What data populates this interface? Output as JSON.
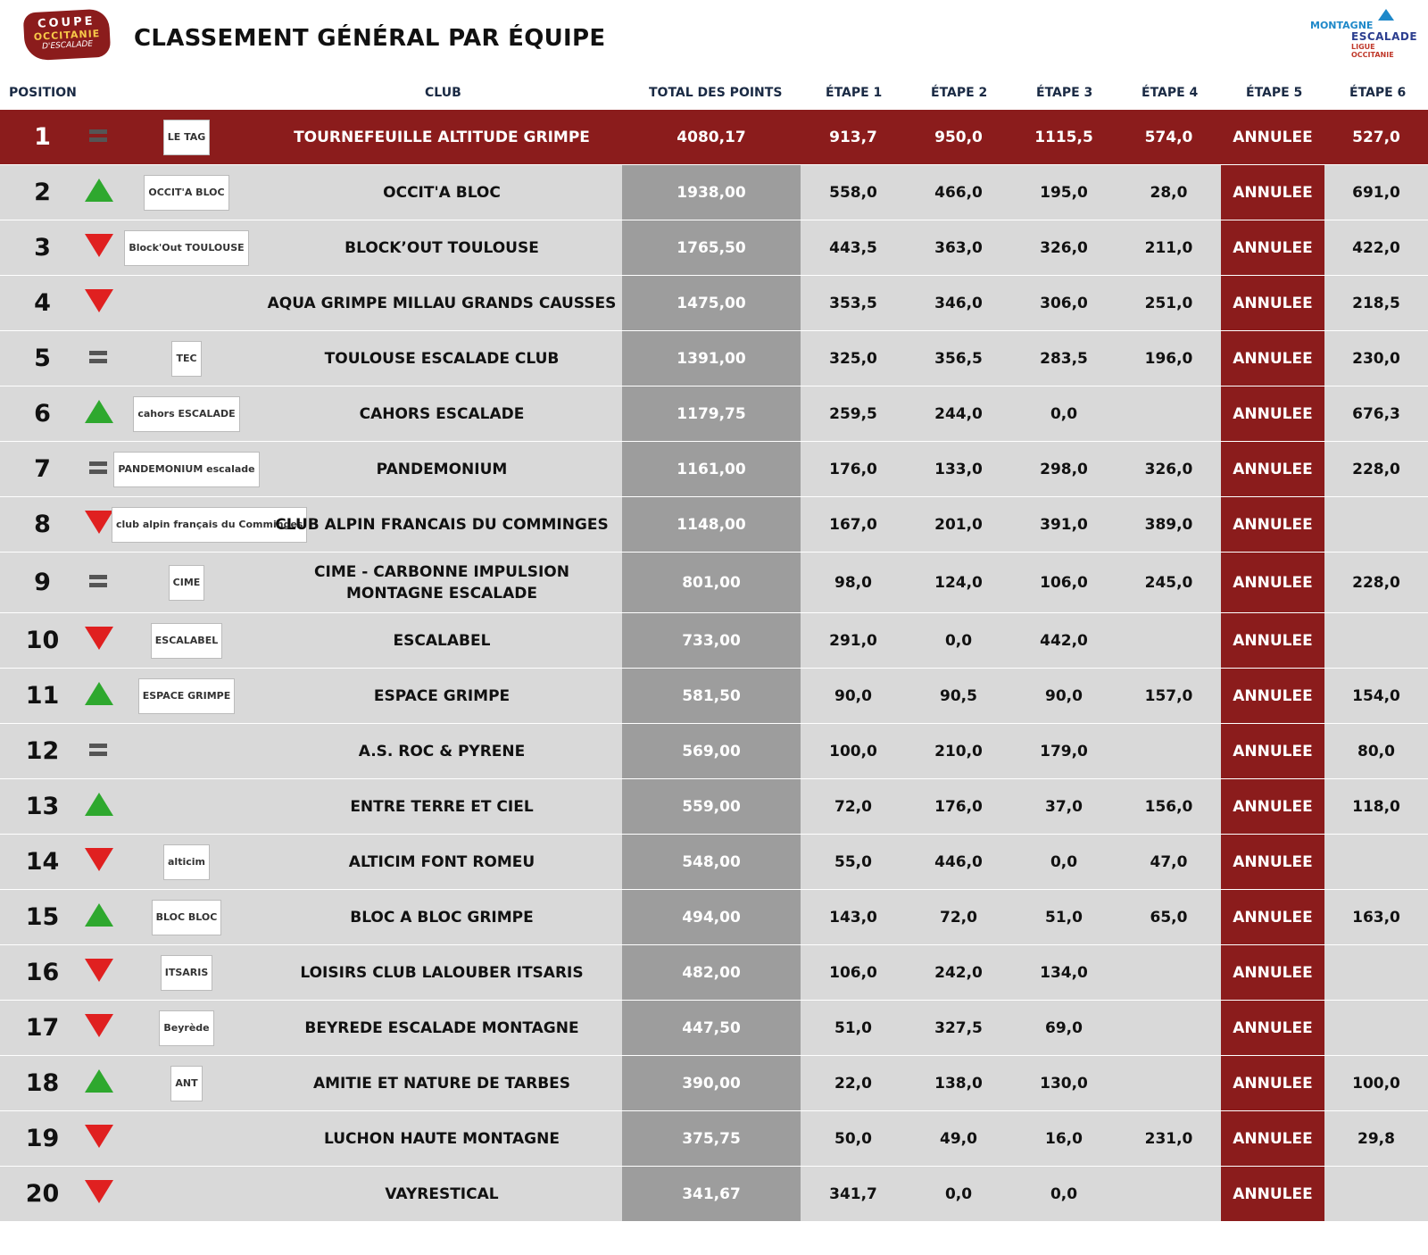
{
  "header": {
    "title": "CLASSEMENT GÉNÉRAL PAR ÉQUIPE",
    "logo_left": {
      "line1": "COUPE",
      "line2": "OCCITANIE",
      "line3": "D'ESCALADE"
    },
    "logo_right": {
      "line1": "MONTAGNE",
      "line2": "ESCALADE",
      "line3": "LIGUE",
      "line4": "OCCITANIE"
    }
  },
  "columns": {
    "position": "POSITION",
    "club": "CLUB",
    "total": "TOTAL DES POINTS",
    "etape1": "ÉTAPE 1",
    "etape2": "ÉTAPE 2",
    "etape3": "ÉTAPE 3",
    "etape4": "ÉTAPE 4",
    "etape5": "ÉTAPE 5",
    "etape6": "ÉTAPE 6"
  },
  "colors": {
    "leader_row": "#8b1c1c",
    "row_bg": "#d9d9d9",
    "total_bg": "#9d9d9d",
    "up": "#2ea82e",
    "down": "#e02020",
    "same": "#555555"
  },
  "rows": [
    {
      "pos": "1",
      "trend": "same",
      "club": "TOURNEFEUILLE ALTITUDE GRIMPE",
      "badge": "LE TAG",
      "total": "4080,17",
      "e1": "913,7",
      "e2": "950,0",
      "e3": "1115,5",
      "e4": "574,0",
      "e5": "ANNULEE",
      "e6": "527,0"
    },
    {
      "pos": "2",
      "trend": "up",
      "club": "OCCIT'A BLOC",
      "badge": "OCCIT'A BLOC",
      "total": "1938,00",
      "e1": "558,0",
      "e2": "466,0",
      "e3": "195,0",
      "e4": "28,0",
      "e5": "ANNULEE",
      "e6": "691,0"
    },
    {
      "pos": "3",
      "trend": "down",
      "club": "BLOCK’OUT TOULOUSE",
      "badge": "Block'Out TOULOUSE",
      "total": "1765,50",
      "e1": "443,5",
      "e2": "363,0",
      "e3": "326,0",
      "e4": "211,0",
      "e5": "ANNULEE",
      "e6": "422,0"
    },
    {
      "pos": "4",
      "trend": "down",
      "club": "AQUA GRIMPE MILLAU GRANDS CAUSSES",
      "badge": "",
      "total": "1475,00",
      "e1": "353,5",
      "e2": "346,0",
      "e3": "306,0",
      "e4": "251,0",
      "e5": "ANNULEE",
      "e6": "218,5"
    },
    {
      "pos": "5",
      "trend": "same",
      "club": "TOULOUSE ESCALADE CLUB",
      "badge": "TEC",
      "total": "1391,00",
      "e1": "325,0",
      "e2": "356,5",
      "e3": "283,5",
      "e4": "196,0",
      "e5": "ANNULEE",
      "e6": "230,0"
    },
    {
      "pos": "6",
      "trend": "up",
      "club": "CAHORS ESCALADE",
      "badge": "cahors ESCALADE",
      "total": "1179,75",
      "e1": "259,5",
      "e2": "244,0",
      "e3": "0,0",
      "e4": "",
      "e5": "ANNULEE",
      "e6": "676,3"
    },
    {
      "pos": "7",
      "trend": "same",
      "club": "PANDEMONIUM",
      "badge": "PANDEMONIUM escalade",
      "total": "1161,00",
      "e1": "176,0",
      "e2": "133,0",
      "e3": "298,0",
      "e4": "326,0",
      "e5": "ANNULEE",
      "e6": "228,0"
    },
    {
      "pos": "8",
      "trend": "down",
      "club": "CLUB ALPIN FRANCAIS DU COMMINGES",
      "badge": "club alpin français du Comminges",
      "total": "1148,00",
      "e1": "167,0",
      "e2": "201,0",
      "e3": "391,0",
      "e4": "389,0",
      "e5": "ANNULEE",
      "e6": ""
    },
    {
      "pos": "9",
      "trend": "same",
      "club": "CIME - CARBONNE IMPULSION MONTAGNE ESCALADE",
      "badge": "CIME",
      "total": "801,00",
      "e1": "98,0",
      "e2": "124,0",
      "e3": "106,0",
      "e4": "245,0",
      "e5": "ANNULEE",
      "e6": "228,0"
    },
    {
      "pos": "10",
      "trend": "down",
      "club": "ESCALABEL",
      "badge": "ESCALABEL",
      "total": "733,00",
      "e1": "291,0",
      "e2": "0,0",
      "e3": "442,0",
      "e4": "",
      "e5": "ANNULEE",
      "e6": ""
    },
    {
      "pos": "11",
      "trend": "up",
      "club": "ESPACE GRIMPE",
      "badge": "ESPACE GRIMPE",
      "total": "581,50",
      "e1": "90,0",
      "e2": "90,5",
      "e3": "90,0",
      "e4": "157,0",
      "e5": "ANNULEE",
      "e6": "154,0"
    },
    {
      "pos": "12",
      "trend": "same",
      "club": "A.S. ROC & PYRENE",
      "badge": "",
      "total": "569,00",
      "e1": "100,0",
      "e2": "210,0",
      "e3": "179,0",
      "e4": "",
      "e5": "ANNULEE",
      "e6": "80,0"
    },
    {
      "pos": "13",
      "trend": "up",
      "club": "ENTRE TERRE ET CIEL",
      "badge": "",
      "total": "559,00",
      "e1": "72,0",
      "e2": "176,0",
      "e3": "37,0",
      "e4": "156,0",
      "e5": "ANNULEE",
      "e6": "118,0"
    },
    {
      "pos": "14",
      "trend": "down",
      "club": "ALTICIM FONT ROMEU",
      "badge": "alticim",
      "total": "548,00",
      "e1": "55,0",
      "e2": "446,0",
      "e3": "0,0",
      "e4": "47,0",
      "e5": "ANNULEE",
      "e6": ""
    },
    {
      "pos": "15",
      "trend": "up",
      "club": "BLOC A BLOC GRIMPE",
      "badge": "BLOC BLOC",
      "total": "494,00",
      "e1": "143,0",
      "e2": "72,0",
      "e3": "51,0",
      "e4": "65,0",
      "e5": "ANNULEE",
      "e6": "163,0"
    },
    {
      "pos": "16",
      "trend": "down",
      "club": "LOISIRS CLUB LALOUBER ITSARIS",
      "badge": "ITSARIS",
      "total": "482,00",
      "e1": "106,0",
      "e2": "242,0",
      "e3": "134,0",
      "e4": "",
      "e5": "ANNULEE",
      "e6": ""
    },
    {
      "pos": "17",
      "trend": "down",
      "club": "BEYREDE ESCALADE MONTAGNE",
      "badge": "Beyrède",
      "total": "447,50",
      "e1": "51,0",
      "e2": "327,5",
      "e3": "69,0",
      "e4": "",
      "e5": "ANNULEE",
      "e6": ""
    },
    {
      "pos": "18",
      "trend": "up",
      "club": "AMITIE ET NATURE DE TARBES",
      "badge": "ANT",
      "total": "390,00",
      "e1": "22,0",
      "e2": "138,0",
      "e3": "130,0",
      "e4": "",
      "e5": "ANNULEE",
      "e6": "100,0"
    },
    {
      "pos": "19",
      "trend": "down",
      "club": "LUCHON HAUTE MONTAGNE",
      "badge": "",
      "total": "375,75",
      "e1": "50,0",
      "e2": "49,0",
      "e3": "16,0",
      "e4": "231,0",
      "e5": "ANNULEE",
      "e6": "29,8"
    },
    {
      "pos": "20",
      "trend": "down",
      "club": "VAYRESTICAL",
      "badge": "",
      "total": "341,67",
      "e1": "341,7",
      "e2": "0,0",
      "e3": "0,0",
      "e4": "",
      "e5": "ANNULEE",
      "e6": ""
    }
  ]
}
